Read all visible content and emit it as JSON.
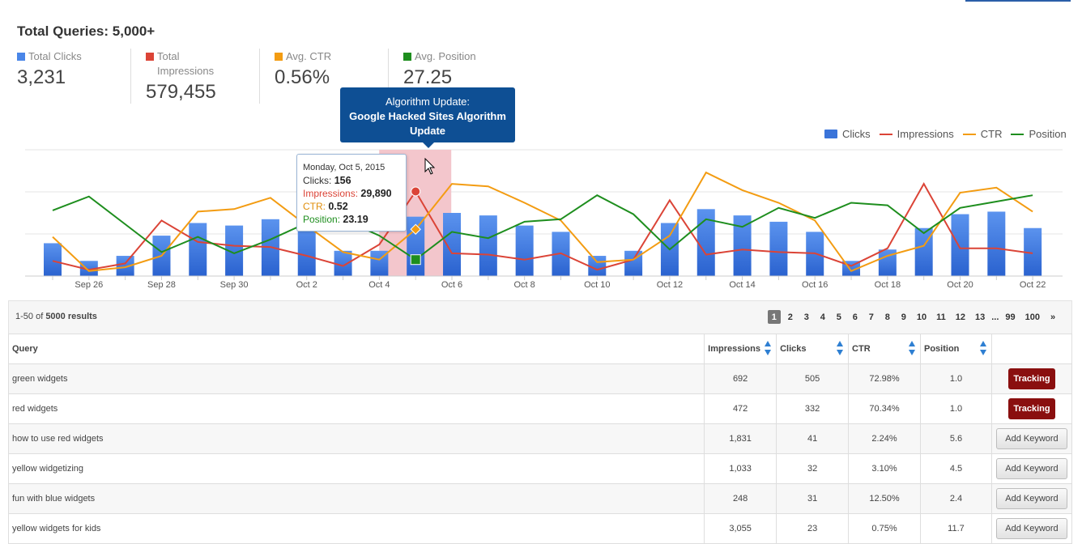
{
  "summary": {
    "title": "Total Queries: 5,000+",
    "metrics": [
      {
        "label": "Total Clicks",
        "value": "3,231",
        "color": "#4a86e8"
      },
      {
        "label": "Total Impressions",
        "value": "579,455",
        "color": "#db4437"
      },
      {
        "label": "Avg. CTR",
        "value": "0.56%",
        "color": "#f39c12"
      },
      {
        "label": "Avg. Position",
        "value": "27.25",
        "color": "#1e8e1e"
      }
    ]
  },
  "legend": {
    "clicks": "Clicks",
    "impressions": "Impressions",
    "ctr": "CTR",
    "position": "Position"
  },
  "algorithm_tooltip": {
    "heading": "Algorithm Update:",
    "name": "Google Hacked Sites Algorithm Update"
  },
  "data_tooltip": {
    "date": "Monday, Oct 5, 2015",
    "clicks_label": "Clicks:",
    "clicks_value": "156",
    "impressions_label": "Impressions:",
    "impressions_value": "29,890",
    "ctr_label": "CTR:",
    "ctr_value": "0.52",
    "position_label": "Position:",
    "position_value": "23.19"
  },
  "chart_data": {
    "type": "bar",
    "x": [
      "Sep 25",
      "Sep 26",
      "Sep 27",
      "Sep 28",
      "Sep 29",
      "Sep 30",
      "Oct 1",
      "Oct 2",
      "Oct 3",
      "Oct 4",
      "Oct 5",
      "Oct 6",
      "Oct 7",
      "Oct 8",
      "Oct 9",
      "Oct 10",
      "Oct 11",
      "Oct 12",
      "Oct 13",
      "Oct 14",
      "Oct 15",
      "Oct 16",
      "Oct 17",
      "Oct 18",
      "Oct 19",
      "Oct 20",
      "Oct 21",
      "Oct 22"
    ],
    "tick_labels": [
      "Sep 26",
      "Sep 28",
      "Sep 30",
      "Oct 2",
      "Oct 4",
      "Oct 6",
      "Oct 8",
      "Oct 10",
      "Oct 12",
      "Oct 14",
      "Oct 16",
      "Oct 18",
      "Oct 20",
      "Oct 22"
    ],
    "highlight_date": "Oct 5",
    "series": [
      {
        "name": "Clicks",
        "type": "bar",
        "color": "#3a74d9",
        "values": [
          26,
          12,
          16,
          32,
          42,
          40,
          45,
          42,
          20,
          20,
          47,
          50,
          48,
          40,
          35,
          16,
          20,
          42,
          53,
          48,
          43,
          35,
          12,
          21,
          38,
          49,
          51,
          38
        ]
      },
      {
        "name": "Impressions",
        "type": "line",
        "color": "#db4437",
        "values": [
          12,
          5,
          10,
          44,
          27,
          24,
          23,
          16,
          8,
          25,
          67,
          18,
          17,
          13,
          18,
          5,
          13,
          60,
          17,
          21,
          19,
          18,
          8,
          22,
          73,
          22,
          22,
          18
        ]
      },
      {
        "name": "CTR",
        "type": "line",
        "color": "#f39c12",
        "values": [
          31,
          4,
          7,
          16,
          51,
          53,
          62,
          40,
          19,
          13,
          37,
          73,
          71,
          58,
          44,
          11,
          13,
          32,
          82,
          68,
          58,
          44,
          4,
          16,
          24,
          66,
          70,
          51
        ]
      },
      {
        "name": "Position",
        "type": "line",
        "color": "#1e8e1e",
        "values": [
          52,
          63,
          41,
          19,
          31,
          18,
          29,
          42,
          45,
          32,
          13,
          35,
          30,
          43,
          45,
          64,
          49,
          21,
          45,
          39,
          54,
          46,
          58,
          56,
          34,
          54,
          59,
          64
        ]
      }
    ]
  },
  "results": {
    "prefix": "1-50 of",
    "count": "5000 results",
    "pages": [
      "1",
      "2",
      "3",
      "4",
      "5",
      "6",
      "7",
      "8",
      "9",
      "10",
      "11",
      "12",
      "13",
      "...",
      "99",
      "100"
    ],
    "next": "»"
  },
  "table": {
    "headers": [
      "Query",
      "Impressions",
      "Clicks",
      "CTR",
      "Position"
    ],
    "rows": [
      {
        "query": "green widgets",
        "impressions": "692",
        "clicks": "505",
        "ctr": "72.98%",
        "position": "1.0",
        "action": "Tracking"
      },
      {
        "query": "red widgets",
        "impressions": "472",
        "clicks": "332",
        "ctr": "70.34%",
        "position": "1.0",
        "action": "Tracking"
      },
      {
        "query": "how to use red widgets",
        "impressions": "1,831",
        "clicks": "41",
        "ctr": "2.24%",
        "position": "5.6",
        "action": "Add Keyword"
      },
      {
        "query": "yellow widgetizing",
        "impressions": "1,033",
        "clicks": "32",
        "ctr": "3.10%",
        "position": "4.5",
        "action": "Add Keyword"
      },
      {
        "query": "fun with blue widgets",
        "impressions": "248",
        "clicks": "31",
        "ctr": "12.50%",
        "position": "2.4",
        "action": "Add Keyword"
      },
      {
        "query": "yellow widgets for kids",
        "impressions": "3,055",
        "clicks": "23",
        "ctr": "0.75%",
        "position": "11.7",
        "action": "Add Keyword"
      }
    ]
  }
}
